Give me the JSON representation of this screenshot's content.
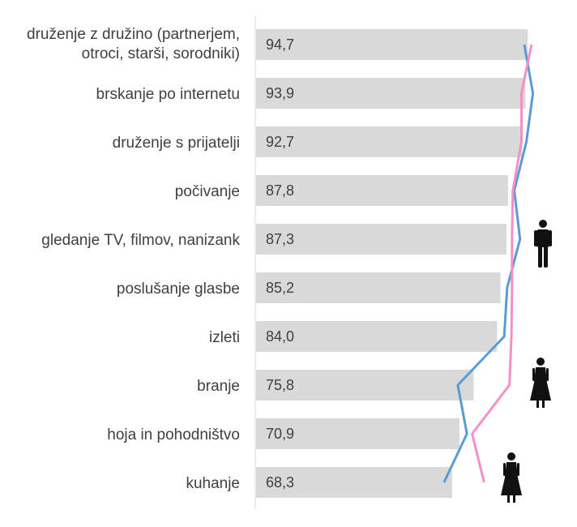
{
  "chart_data": {
    "type": "bar",
    "orientation": "horizontal",
    "categories": [
      [
        "druženje z družino (partnerjem,",
        "otroci, starši, sorodniki)"
      ],
      [
        "brskanje po internetu"
      ],
      [
        "druženje s prijatelji"
      ],
      [
        "počivanje"
      ],
      [
        "gledanje TV, filmov, nanizank"
      ],
      [
        "poslušanje glasbe"
      ],
      [
        "izleti"
      ],
      [
        "branje"
      ],
      [
        "hoja in pohodništvo"
      ],
      [
        "kuhanje"
      ]
    ],
    "values": [
      94.7,
      93.9,
      92.7,
      87.8,
      87.3,
      85.2,
      84.0,
      75.8,
      70.9,
      68.3
    ],
    "value_labels": [
      "94,7",
      "93,9",
      "92,7",
      "87,8",
      "87,3",
      "85,2",
      "84,0",
      "75,8",
      "70,9",
      "68,3"
    ],
    "bar_color": "#d9d9d9",
    "series_lines": [
      {
        "values": [
          93.5,
          96.5,
          94.2,
          90.0,
          92.0,
          87.5,
          86.5,
          70.3,
          73.5,
          65.5
        ],
        "color": "#5b9bd5",
        "icon": "man-icon"
      },
      {
        "values": [
          96.0,
          92.5,
          92.5,
          89.5,
          89.2,
          89.2,
          89.0,
          88.3,
          75.3,
          79.5
        ],
        "color": "#f48fc8",
        "icon": "woman-icon"
      }
    ],
    "xlim": [
      0,
      100
    ],
    "grid": false,
    "legend": "icons-right"
  }
}
